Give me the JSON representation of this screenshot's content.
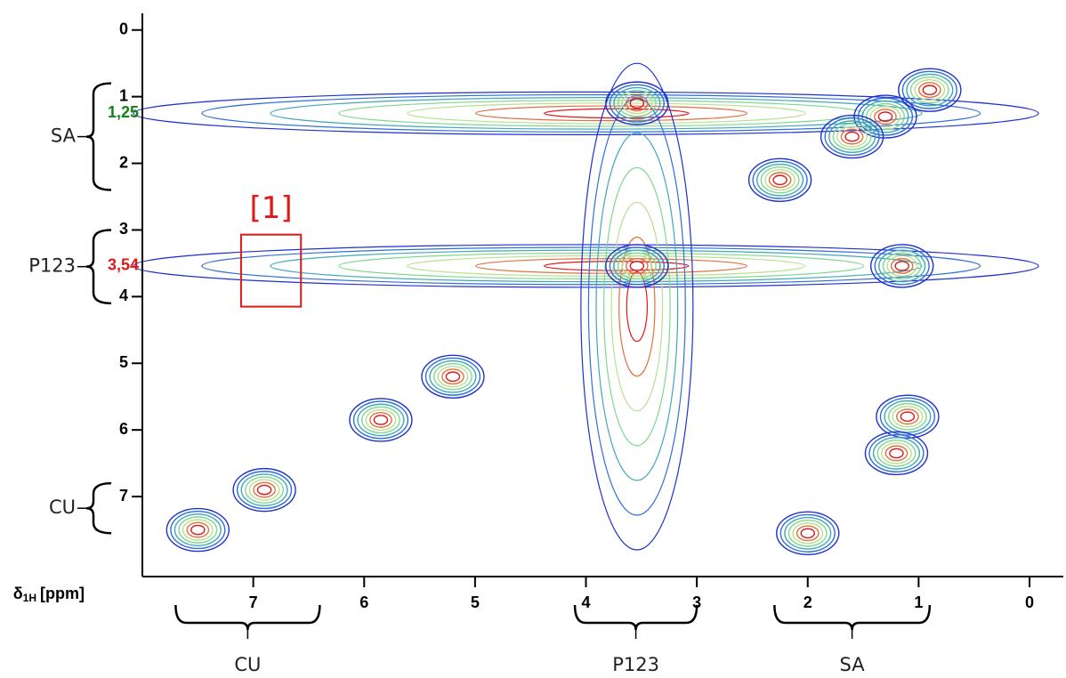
{
  "chart_data": {
    "type": "contour",
    "x_label": {
      "symbol": "δ",
      "subscript": "1H",
      "unit": "[ppm]"
    },
    "xlim": [
      8,
      0
    ],
    "xticks": [
      0,
      1,
      2,
      3,
      4,
      5,
      6,
      7
    ],
    "ylim": [
      -0.25,
      8.2
    ],
    "yticks": [
      0,
      1,
      2,
      3,
      4,
      5,
      6,
      7
    ],
    "contour_colors": [
      "#1f2fd0",
      "#2f6fd8",
      "#3fa8b8",
      "#7ed88e",
      "#b8e090",
      "#e07040",
      "#e01818"
    ],
    "peaks": [
      {
        "x": 1.3,
        "y": 1.3
      },
      {
        "x": 0.9,
        "y": 0.9
      },
      {
        "x": 1.6,
        "y": 1.6
      },
      {
        "x": 2.25,
        "y": 2.25
      },
      {
        "x": 3.54,
        "y": 3.54
      },
      {
        "x": 1.15,
        "y": 3.54
      },
      {
        "x": 3.54,
        "y": 1.1
      },
      {
        "x": 5.2,
        "y": 5.2
      },
      {
        "x": 5.85,
        "y": 5.85
      },
      {
        "x": 6.9,
        "y": 6.9
      },
      {
        "x": 7.5,
        "y": 7.5
      },
      {
        "x": 2.0,
        "y": 7.55
      },
      {
        "x": 1.1,
        "y": 5.8
      },
      {
        "x": 1.2,
        "y": 6.35
      }
    ],
    "peak_labels": [
      {
        "text": "1,25",
        "value": 1.25,
        "color": "#148214"
      },
      {
        "text": "3,54",
        "value": 3.54,
        "color": "#e01818"
      }
    ],
    "y_brackets": [
      {
        "label": "SA",
        "from": 0.8,
        "to": 2.4
      },
      {
        "label": "P123",
        "from": 3.0,
        "to": 4.1
      },
      {
        "label": "CU",
        "from": 6.8,
        "to": 7.55
      }
    ],
    "x_brackets": [
      {
        "label": "CU",
        "from": 7.7,
        "to": 6.4
      },
      {
        "label": "P123",
        "from": 4.1,
        "to": 3.0
      },
      {
        "label": "SA",
        "from": 2.3,
        "to": 0.9
      }
    ],
    "box": {
      "label": "[1]",
      "x": [
        7.11,
        6.57
      ],
      "y": [
        3.07,
        4.15
      ],
      "color": "#e01818"
    }
  }
}
